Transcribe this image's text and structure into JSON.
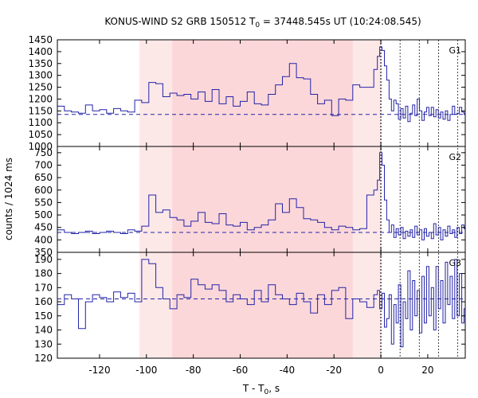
{
  "chart_data": {
    "type": "line",
    "title": {
      "prefix": "KONUS-WIND S2 GRB 150512 T",
      "sub": "0",
      "suffix": " = 37448.545s UT (10:24:08.545)"
    },
    "xlabel": {
      "prefix": "T - T",
      "sub": "0",
      "suffix": ", s"
    },
    "ylabel": "counts / 1024 ms",
    "xlim": [
      -138,
      36
    ],
    "x_ticks": [
      -120,
      -100,
      -80,
      -60,
      -40,
      -20,
      0,
      20
    ],
    "shaded_regions": [
      {
        "x0": -103,
        "x1": 0,
        "color": "#fde8e8"
      },
      {
        "x0": -89,
        "x1": -12,
        "color": "#fcd7d9"
      }
    ],
    "vertical_markers": [
      0,
      8.2,
      16.4,
      24.6,
      32.8
    ],
    "series_color": "#2323a8",
    "panels": [
      {
        "label": "G1",
        "ylim": [
          1000,
          1450
        ],
        "y_ticks": [
          1000,
          1050,
          1100,
          1150,
          1200,
          1250,
          1300,
          1350,
          1400,
          1450
        ],
        "background": 1135,
        "x": [
          -138,
          -135,
          -132,
          -129,
          -126,
          -123,
          -120,
          -117,
          -114,
          -111,
          -108,
          -105,
          -102,
          -99,
          -96,
          -93,
          -90,
          -87,
          -84,
          -81,
          -78,
          -75,
          -72,
          -69,
          -66,
          -63,
          -60,
          -57,
          -54,
          -51,
          -48,
          -45,
          -42,
          -39,
          -36,
          -33,
          -30,
          -27,
          -24,
          -21,
          -18,
          -15,
          -12,
          -9,
          -6,
          -3,
          -1.5,
          -0.5,
          0.5,
          1.5,
          2.5,
          3.5,
          4.5,
          5.5,
          6.5,
          7.5,
          8.5,
          9.5,
          10.5,
          11.5,
          12.5,
          13.5,
          14.5,
          15.5,
          16.5,
          17.5,
          18.5,
          19.5,
          20.5,
          21.5,
          22.5,
          23.5,
          24.5,
          25.5,
          26.5,
          27.5,
          28.5,
          29.5,
          30.5,
          31.5,
          32.5,
          33.5,
          34.5,
          35.5
        ],
        "y": [
          1170,
          1150,
          1145,
          1140,
          1175,
          1150,
          1155,
          1140,
          1160,
          1150,
          1145,
          1195,
          1185,
          1270,
          1265,
          1210,
          1225,
          1215,
          1220,
          1200,
          1230,
          1190,
          1240,
          1180,
          1210,
          1170,
          1190,
          1230,
          1180,
          1175,
          1220,
          1260,
          1295,
          1350,
          1290,
          1285,
          1220,
          1180,
          1195,
          1130,
          1200,
          1195,
          1260,
          1250,
          1250,
          1325,
          1380,
          1420,
          1405,
          1340,
          1280,
          1200,
          1150,
          1195,
          1180,
          1115,
          1160,
          1120,
          1170,
          1105,
          1140,
          1175,
          1130,
          1200,
          1150,
          1110,
          1145,
          1165,
          1130,
          1165,
          1125,
          1155,
          1120,
          1145,
          1115,
          1150,
          1110,
          1135,
          1170,
          1135,
          1140,
          1165,
          1145,
          1135
        ]
      },
      {
        "label": "G2",
        "ylim": [
          350,
          775
        ],
        "y_ticks": [
          350,
          400,
          450,
          500,
          550,
          600,
          650,
          700,
          750
        ],
        "background": 430,
        "x": [
          -138,
          -135,
          -132,
          -129,
          -126,
          -123,
          -120,
          -117,
          -114,
          -111,
          -108,
          -105,
          -102,
          -99,
          -96,
          -93,
          -90,
          -87,
          -84,
          -81,
          -78,
          -75,
          -72,
          -69,
          -66,
          -63,
          -60,
          -57,
          -54,
          -51,
          -48,
          -45,
          -42,
          -39,
          -36,
          -33,
          -30,
          -27,
          -24,
          -21,
          -18,
          -15,
          -12,
          -9,
          -6,
          -3,
          -1.5,
          -0.5,
          0.5,
          1.5,
          2.5,
          3.5,
          4.5,
          5.5,
          6.5,
          7.5,
          8.5,
          9.5,
          10.5,
          11.5,
          12.5,
          13.5,
          14.5,
          15.5,
          16.5,
          17.5,
          18.5,
          19.5,
          20.5,
          21.5,
          22.5,
          23.5,
          24.5,
          25.5,
          26.5,
          27.5,
          28.5,
          29.5,
          30.5,
          31.5,
          32.5,
          33.5,
          34.5,
          35.5
        ],
        "y": [
          440,
          430,
          425,
          430,
          435,
          425,
          430,
          435,
          430,
          425,
          440,
          435,
          455,
          580,
          510,
          520,
          490,
          480,
          455,
          475,
          510,
          470,
          465,
          505,
          460,
          455,
          470,
          440,
          450,
          460,
          480,
          545,
          510,
          565,
          530,
          485,
          480,
          470,
          450,
          440,
          455,
          450,
          440,
          445,
          580,
          600,
          640,
          750,
          700,
          560,
          480,
          430,
          460,
          410,
          445,
          420,
          450,
          405,
          435,
          415,
          440,
          410,
          455,
          420,
          440,
          400,
          445,
          415,
          430,
          405,
          465,
          420,
          450,
          400,
          440,
          415,
          455,
          425,
          440,
          410,
          450,
          425,
          460,
          445
        ]
      },
      {
        "label": "G3",
        "ylim": [
          120,
          195
        ],
        "y_ticks": [
          120,
          130,
          140,
          150,
          160,
          170,
          180,
          190
        ],
        "background": 162,
        "x": [
          -138,
          -135,
          -132,
          -129,
          -126,
          -123,
          -120,
          -117,
          -114,
          -111,
          -108,
          -105,
          -102,
          -99,
          -96,
          -93,
          -90,
          -87,
          -84,
          -81,
          -78,
          -75,
          -72,
          -69,
          -66,
          -63,
          -60,
          -57,
          -54,
          -51,
          -48,
          -45,
          -42,
          -39,
          -36,
          -33,
          -30,
          -27,
          -24,
          -21,
          -18,
          -15,
          -12,
          -9,
          -6,
          -3,
          -1.5,
          -0.5,
          0.5,
          1.5,
          2.5,
          3.5,
          4.5,
          5.5,
          6.5,
          7.5,
          8.5,
          9.5,
          10.5,
          11.5,
          12.5,
          13.5,
          14.5,
          15.5,
          16.5,
          17.5,
          18.5,
          19.5,
          20.5,
          21.5,
          22.5,
          23.5,
          24.5,
          25.5,
          26.5,
          27.5,
          28.5,
          29.5,
          30.5,
          31.5,
          32.5,
          33.5,
          34.5,
          35.5
        ],
        "y": [
          158,
          165,
          162,
          141,
          160,
          165,
          163,
          160,
          167,
          163,
          166,
          160,
          190,
          187,
          170,
          162,
          155,
          165,
          163,
          176,
          172,
          169,
          172,
          168,
          160,
          165,
          162,
          158,
          168,
          160,
          172,
          165,
          162,
          158,
          166,
          160,
          152,
          165,
          158,
          168,
          170,
          148,
          162,
          160,
          156,
          165,
          168,
          155,
          166,
          142,
          148,
          165,
          130,
          158,
          145,
          172,
          128,
          160,
          148,
          182,
          140,
          175,
          150,
          168,
          138,
          178,
          145,
          185,
          150,
          170,
          140,
          185,
          155,
          175,
          145,
          188,
          158,
          178,
          148,
          190,
          150,
          180,
          145,
          155
        ]
      }
    ]
  }
}
